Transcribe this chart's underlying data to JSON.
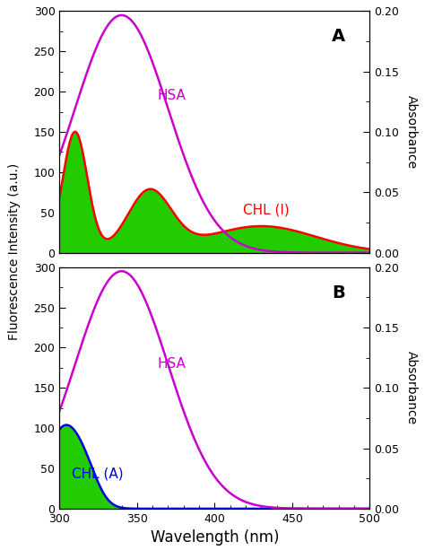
{
  "xlim": [
    300,
    500
  ],
  "ylim_left": [
    0,
    300
  ],
  "ylim_right": [
    0,
    0.2
  ],
  "xlabel": "Wavelength (nm)",
  "ylabel_left": "Fluorescence Intensity (a.u.)",
  "ylabel_right": "Absorbance",
  "panel_A_label": "A",
  "panel_B_label": "B",
  "hsa_label": "HSA",
  "chl_I_label": "CHL (I)",
  "chl_A_label": "CHL (A)",
  "hsa_color": "#CC00CC",
  "chl_I_color": "#FF0000",
  "chl_A_color": "#0000EE",
  "fill_color": "#22CC00",
  "background_color": "#FFFFFF",
  "xticks": [
    300,
    350,
    400,
    450,
    500
  ],
  "yticks_left": [
    0,
    50,
    100,
    150,
    200,
    250,
    300
  ],
  "yticks_right": [
    0.0,
    0.05,
    0.1,
    0.15,
    0.2
  ]
}
